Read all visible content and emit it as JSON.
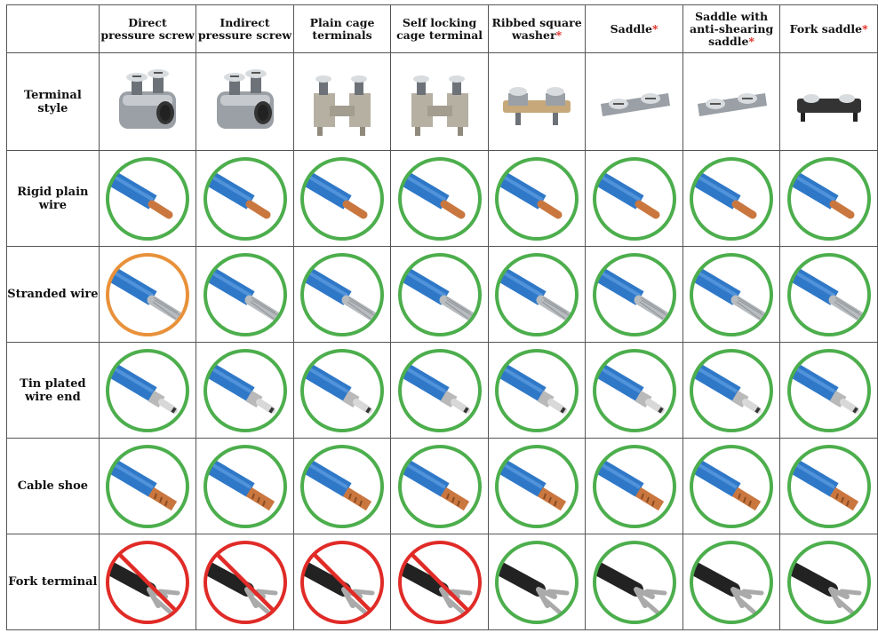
{
  "columns": [
    {
      "label": "Direct pressure screw",
      "star": ""
    },
    {
      "label": "Indirect pressure screw",
      "star": ""
    },
    {
      "label": "Plain cage terminals",
      "star": ""
    },
    {
      "label": "Self locking cage terminal",
      "star": ""
    },
    {
      "label": "Ribbed square washer",
      "star": "*"
    },
    {
      "label": "Saddle",
      "star": "*"
    },
    {
      "label": "Saddle with anti-shearing saddle",
      "star": "*"
    },
    {
      "label": "Fork saddle",
      "star": "*"
    }
  ],
  "terminal_row_label": "Terminal style",
  "terminal_icons": [
    "direct-pressure-screw-terminal",
    "indirect-pressure-screw-terminal",
    "plain-cage-terminal",
    "self-locking-cage-terminal",
    "ribbed-square-washer-terminal",
    "saddle-terminal",
    "anti-shearing-saddle-terminal",
    "fork-saddle-terminal"
  ],
  "rows": [
    {
      "label": "Rigid plain wire",
      "wire": "rigid",
      "status": [
        "ok",
        "ok",
        "ok",
        "ok",
        "ok",
        "ok",
        "ok",
        "ok"
      ]
    },
    {
      "label": "Stranded wire",
      "wire": "stranded",
      "status": [
        "caution",
        "ok",
        "ok",
        "ok",
        "ok",
        "ok",
        "ok",
        "ok"
      ]
    },
    {
      "label": "Tin plated wire end",
      "wire": "tinned",
      "status": [
        "ok",
        "ok",
        "ok",
        "ok",
        "ok",
        "ok",
        "ok",
        "ok"
      ]
    },
    {
      "label": "Cable shoe",
      "wire": "shoe",
      "status": [
        "ok",
        "ok",
        "ok",
        "ok",
        "ok",
        "ok",
        "ok",
        "ok"
      ]
    },
    {
      "label": "Fork terminal",
      "wire": "fork",
      "status": [
        "no",
        "no",
        "no",
        "no",
        "ok",
        "ok",
        "ok",
        "ok"
      ]
    }
  ],
  "status_colors": {
    "ok": "#4cae4c",
    "caution": "#e8913a",
    "no": "#e02b27"
  },
  "accent_colors": {
    "star": "#e2231a",
    "wire_blue": "#2f78c8",
    "copper": "#c9773f"
  }
}
